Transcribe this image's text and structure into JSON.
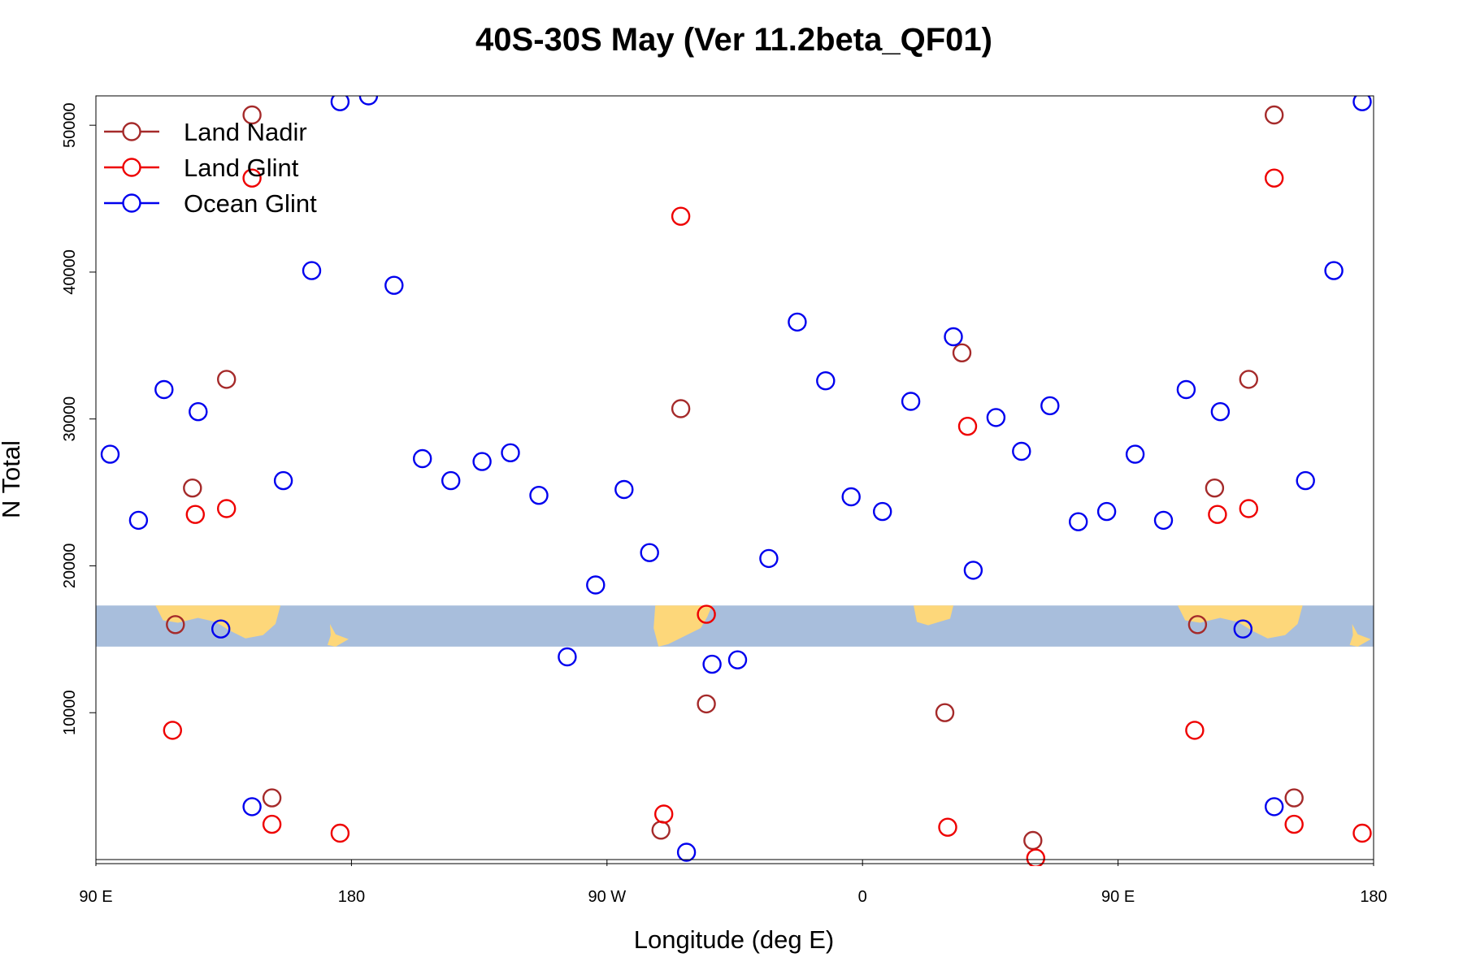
{
  "chart_data": {
    "type": "scatter",
    "title": "40S-30S May (Ver 11.2beta_QF01)",
    "xlabel": "Longitude (deg E)",
    "ylabel": "N Total",
    "xlim": [
      90,
      540
    ],
    "ylim": [
      0,
      52000
    ],
    "x_ticks": [
      {
        "value": 90,
        "label": "90 E"
      },
      {
        "value": 180,
        "label": "180"
      },
      {
        "value": 270,
        "label": "90 W"
      },
      {
        "value": 360,
        "label": "0"
      },
      {
        "value": 450,
        "label": "90 E"
      },
      {
        "value": 540,
        "label": "180"
      }
    ],
    "y_ticks": [
      {
        "value": 10000,
        "label": "10000"
      },
      {
        "value": 20000,
        "label": "20000"
      },
      {
        "value": 30000,
        "label": "30000"
      },
      {
        "value": 40000,
        "label": "40000"
      },
      {
        "value": 50000,
        "label": "50000"
      }
    ],
    "grid": false,
    "legend_position": "top-left",
    "map_band": {
      "y_range": [
        14500,
        17300
      ],
      "ocean_color": "#a8bedc",
      "land_color": "#fdd77a"
    },
    "series": [
      {
        "name": "Land Nadir",
        "color": "#a52a2a",
        "points": [
          [
            118,
            16000
          ],
          [
            124,
            25300
          ],
          [
            136,
            32700
          ],
          [
            145,
            50700
          ],
          [
            152,
            4200
          ],
          [
            296,
            30700
          ],
          [
            305,
            10600
          ],
          [
            389,
            10000
          ],
          [
            395,
            34500
          ],
          [
            420,
            1300
          ],
          [
            478,
            16000
          ],
          [
            484,
            25300
          ],
          [
            496,
            32700
          ],
          [
            505,
            50700
          ],
          [
            512,
            4200
          ],
          [
            289,
            2000
          ]
        ]
      },
      {
        "name": "Land Glint",
        "color": "#ee0000",
        "points": [
          [
            117,
            8800
          ],
          [
            125,
            23500
          ],
          [
            136,
            23900
          ],
          [
            145,
            46400
          ],
          [
            152,
            2400
          ],
          [
            176,
            1800
          ],
          [
            290,
            3100
          ],
          [
            296,
            43800
          ],
          [
            305,
            16700
          ],
          [
            390,
            2200
          ],
          [
            397,
            29500
          ],
          [
            421,
            100
          ],
          [
            477,
            8800
          ],
          [
            485,
            23500
          ],
          [
            496,
            23900
          ],
          [
            505,
            46400
          ],
          [
            512,
            2400
          ],
          [
            536,
            1800
          ]
        ]
      },
      {
        "name": "Ocean Glint",
        "color": "#0000ee",
        "points": [
          [
            95,
            27600
          ],
          [
            105,
            23100
          ],
          [
            114,
            32000
          ],
          [
            126,
            30500
          ],
          [
            134,
            15700
          ],
          [
            145,
            3600
          ],
          [
            156,
            25800
          ],
          [
            166,
            40100
          ],
          [
            176,
            51600
          ],
          [
            186,
            52000
          ],
          [
            195,
            39100
          ],
          [
            205,
            27300
          ],
          [
            215,
            25800
          ],
          [
            226,
            27100
          ],
          [
            236,
            27700
          ],
          [
            246,
            24800
          ],
          [
            256,
            13800
          ],
          [
            266,
            18700
          ],
          [
            276,
            25200
          ],
          [
            285,
            20900
          ],
          [
            298,
            500
          ],
          [
            307,
            13300
          ],
          [
            316,
            13600
          ],
          [
            327,
            20500
          ],
          [
            337,
            36600
          ],
          [
            347,
            32600
          ],
          [
            356,
            24700
          ],
          [
            367,
            23700
          ],
          [
            377,
            31200
          ],
          [
            399,
            19700
          ],
          [
            392,
            35600
          ],
          [
            407,
            30100
          ],
          [
            416,
            27800
          ],
          [
            426,
            30900
          ],
          [
            436,
            23000
          ],
          [
            446,
            23700
          ],
          [
            456,
            27600
          ],
          [
            466,
            23100
          ],
          [
            474,
            32000
          ],
          [
            486,
            30500
          ],
          [
            494,
            15700
          ],
          [
            505,
            3600
          ],
          [
            516,
            25800
          ],
          [
            526,
            40100
          ],
          [
            536,
            51600
          ]
        ]
      }
    ]
  }
}
